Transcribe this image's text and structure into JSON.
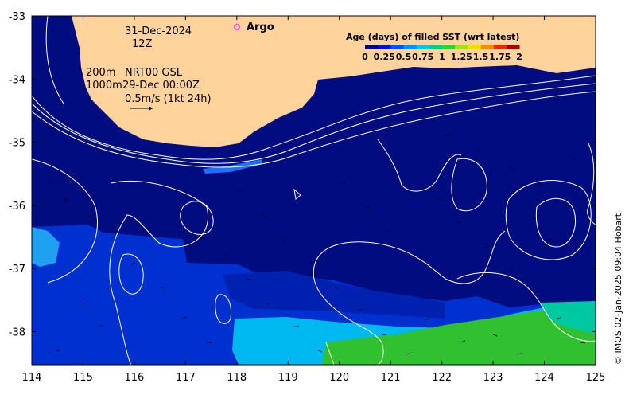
{
  "map": {
    "date_line": "31-Dec-2024",
    "time_line": "12Z",
    "argo_label": "Argo",
    "argo_marker_color": "#e000e0",
    "legend_title": "Age (days) of filled SST (wrt latest)",
    "legend_ticks": [
      "0",
      "0.25",
      "0.5",
      "0.75",
      "1",
      "1.25",
      "1.5",
      "1.75",
      "2"
    ],
    "legend_colors": [
      "#000080",
      "#0010d0",
      "#0050ff",
      "#0090ff",
      "#00c8e0",
      "#00d080",
      "#30d030",
      "#a0e020",
      "#f0e000",
      "#f09000",
      "#e03000",
      "#a00000"
    ],
    "contour_label_200": "200m",
    "contour_label_1000": "1000m",
    "product_label": "NRT00 GSL",
    "product_time": "29-Dec 00:00Z",
    "vector_scale_label": "0.5m/s (1kt 24h)",
    "credit": "© IMOS 02-Jan-2025 09:04 Hobart",
    "land_color": "#ffd39b",
    "ocean_color": "#000c80",
    "x_ticks": [
      "114",
      "115",
      "116",
      "117",
      "118",
      "119",
      "120",
      "121",
      "122",
      "123",
      "124",
      "125"
    ],
    "y_ticks": [
      "-33",
      "-34",
      "-35",
      "-36",
      "-37",
      "-38"
    ]
  }
}
